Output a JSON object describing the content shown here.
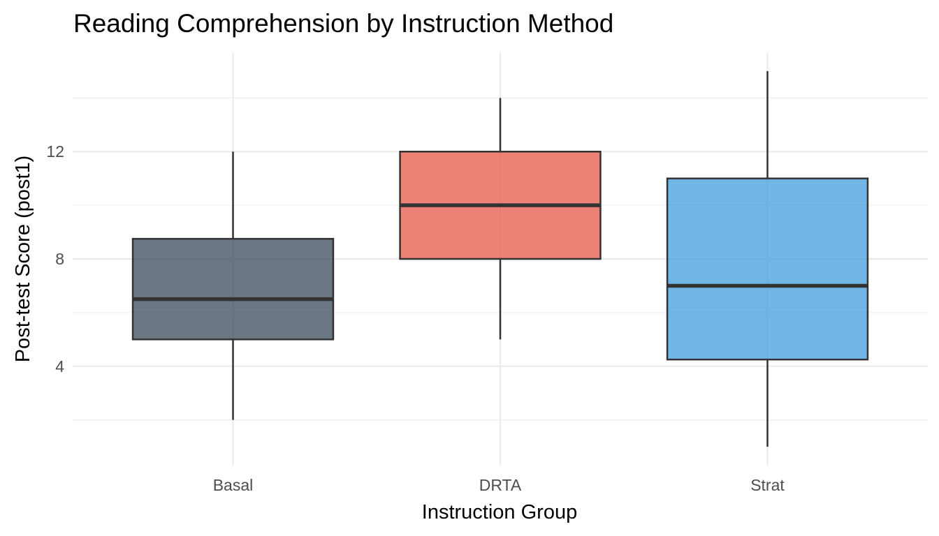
{
  "chart_data": {
    "type": "boxplot",
    "title": "Reading Comprehension by Instruction Method",
    "xlabel": "Instruction Group",
    "ylabel": "Post-test Score (post1)",
    "categories": [
      "Basal",
      "DRTA",
      "Strat"
    ],
    "ylim": [
      0.3,
      15.7
    ],
    "yticks": [
      4,
      8,
      12
    ],
    "grid": true,
    "legend": "none",
    "series": [
      {
        "category": "Basal",
        "min": 2,
        "q1": 5,
        "median": 6.5,
        "q3": 8.75,
        "max": 12,
        "color": "#2C3E50"
      },
      {
        "category": "DRTA",
        "min": 5,
        "q1": 8,
        "median": 10,
        "q3": 12,
        "max": 14,
        "color": "#E74C3C"
      },
      {
        "category": "Strat",
        "min": 1,
        "q1": 4.25,
        "median": 7,
        "q3": 11,
        "max": 15,
        "color": "#3498DB"
      }
    ],
    "fill_alpha": 0.7
  }
}
